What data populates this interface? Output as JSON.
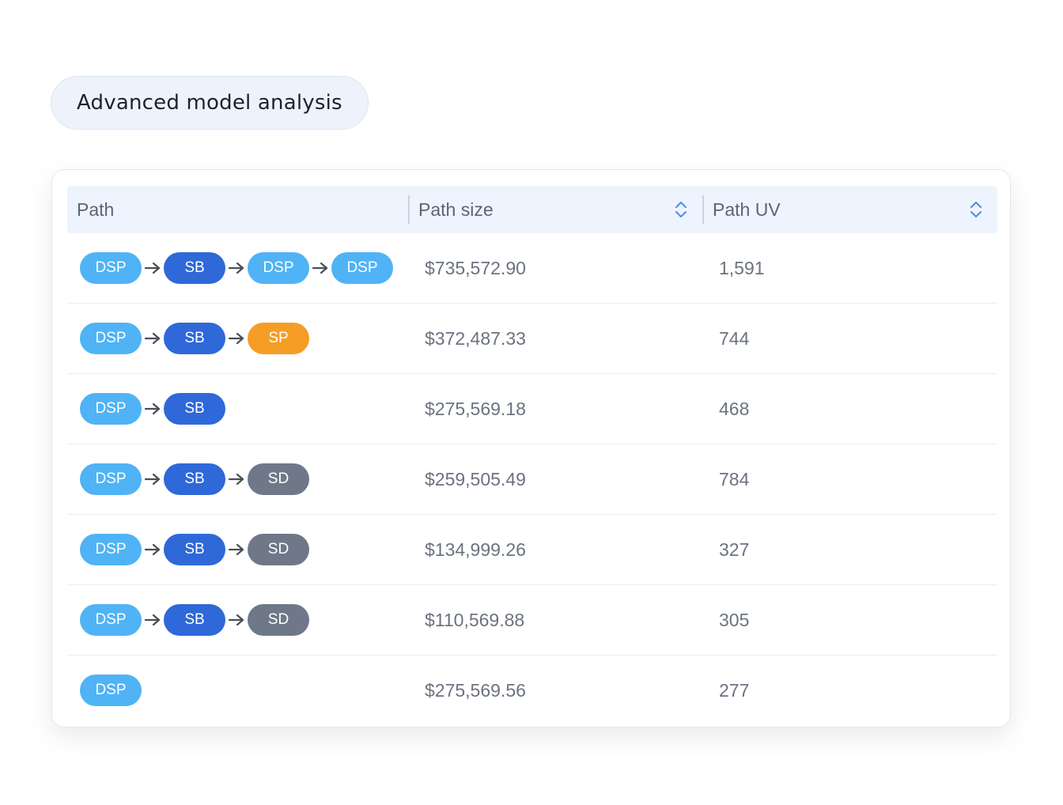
{
  "title": "Advanced model analysis",
  "colors": {
    "DSP": "#4fb3f6",
    "SB": "#2f68d8",
    "SP": "#f59d25",
    "SD": "#6e7889"
  },
  "table": {
    "headers": {
      "path": "Path",
      "path_size": "Path size",
      "path_uv": "Path UV"
    },
    "rows": [
      {
        "path": [
          "DSP",
          "SB",
          "DSP",
          "DSP"
        ],
        "path_size": "$735,572.90",
        "path_uv": "1,591"
      },
      {
        "path": [
          "DSP",
          "SB",
          "SP"
        ],
        "path_size": "$372,487.33",
        "path_uv": "744"
      },
      {
        "path": [
          "DSP",
          "SB"
        ],
        "path_size": "$275,569.18",
        "path_uv": "468"
      },
      {
        "path": [
          "DSP",
          "SB",
          "SD"
        ],
        "path_size": "$259,505.49",
        "path_uv": "784"
      },
      {
        "path": [
          "DSP",
          "SB",
          "SD"
        ],
        "path_size": "$134,999.26",
        "path_uv": "327"
      },
      {
        "path": [
          "DSP",
          "SB",
          "SD"
        ],
        "path_size": "$110,569.88",
        "path_uv": "305"
      },
      {
        "path": [
          "DSP"
        ],
        "path_size": "$275,569.56",
        "path_uv": "277"
      }
    ]
  }
}
